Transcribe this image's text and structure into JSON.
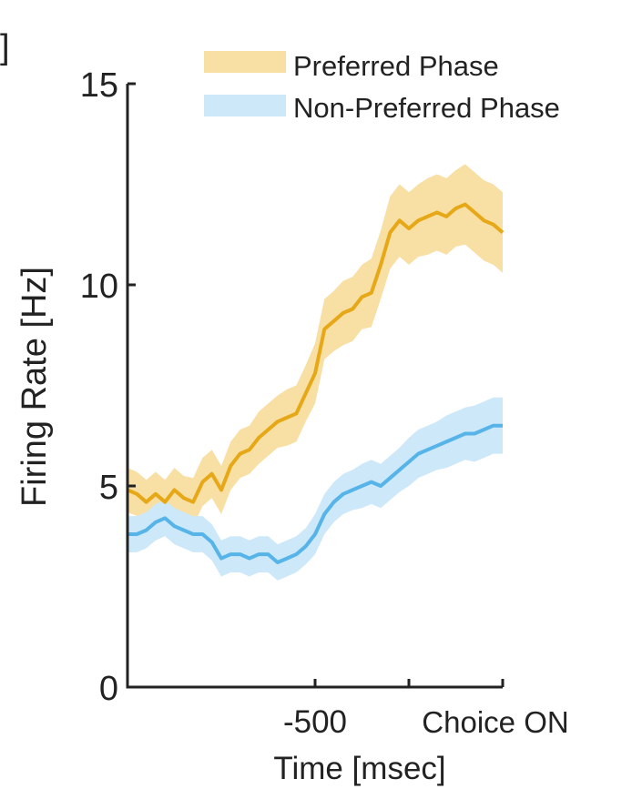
{
  "chart_data": {
    "type": "line",
    "title": "",
    "panel_label": "]",
    "xlabel": "Time [msec]",
    "ylabel": "Firing Rate [Hz]",
    "xlim": [
      -1000,
      0
    ],
    "ylim": [
      0,
      15
    ],
    "yticks": [
      0,
      5,
      10,
      15
    ],
    "ytick_labels": [
      "0",
      "5",
      "10",
      "15"
    ],
    "xticks": [
      -500,
      -250,
      0
    ],
    "xtick_labels": [
      "-500",
      "",
      "Choice ON"
    ],
    "grid": false,
    "legend": "top-right",
    "x": [
      -1000,
      -975,
      -950,
      -925,
      -900,
      -875,
      -850,
      -825,
      -800,
      -775,
      -750,
      -725,
      -700,
      -675,
      -650,
      -625,
      -600,
      -575,
      -550,
      -525,
      -500,
      -475,
      -450,
      -425,
      -400,
      -375,
      -350,
      -325,
      -300,
      -275,
      -250,
      -225,
      -200,
      -175,
      -150,
      -125,
      -100,
      -75,
      -50,
      -25,
      0
    ],
    "series": [
      {
        "name": "Preferred Phase",
        "color": "#e6a817",
        "band_color": "#f8dfa4",
        "values": [
          4.9,
          4.8,
          4.6,
          4.8,
          4.6,
          4.9,
          4.7,
          4.6,
          5.1,
          5.3,
          4.9,
          5.5,
          5.8,
          5.9,
          6.2,
          6.4,
          6.6,
          6.7,
          6.8,
          7.3,
          7.8,
          8.9,
          9.1,
          9.3,
          9.4,
          9.7,
          9.8,
          10.5,
          11.3,
          11.6,
          11.4,
          11.6,
          11.7,
          11.8,
          11.7,
          11.9,
          12.0,
          11.8,
          11.6,
          11.5,
          11.3
        ],
        "err": [
          0.55,
          0.55,
          0.55,
          0.55,
          0.55,
          0.55,
          0.55,
          0.6,
          0.6,
          0.6,
          0.6,
          0.6,
          0.6,
          0.6,
          0.65,
          0.65,
          0.65,
          0.7,
          0.7,
          0.7,
          0.75,
          0.75,
          0.75,
          0.8,
          0.8,
          0.8,
          0.85,
          0.85,
          0.9,
          0.9,
          0.9,
          0.9,
          0.95,
          0.95,
          0.95,
          0.95,
          1.0,
          1.0,
          1.0,
          1.0,
          1.0
        ]
      },
      {
        "name": "Non-Preferred Phase",
        "color": "#56b4e9",
        "band_color": "#cde8f8",
        "values": [
          3.8,
          3.8,
          3.9,
          4.1,
          4.2,
          4.0,
          3.9,
          3.8,
          3.8,
          3.6,
          3.2,
          3.3,
          3.3,
          3.2,
          3.3,
          3.3,
          3.1,
          3.2,
          3.3,
          3.5,
          3.8,
          4.3,
          4.6,
          4.8,
          4.9,
          5.0,
          5.1,
          5.0,
          5.2,
          5.4,
          5.6,
          5.8,
          5.9,
          6.0,
          6.1,
          6.2,
          6.3,
          6.3,
          6.4,
          6.5,
          6.5
        ],
        "err": [
          0.45,
          0.45,
          0.45,
          0.45,
          0.45,
          0.45,
          0.45,
          0.45,
          0.45,
          0.45,
          0.45,
          0.45,
          0.45,
          0.45,
          0.45,
          0.45,
          0.45,
          0.45,
          0.45,
          0.45,
          0.5,
          0.5,
          0.5,
          0.5,
          0.5,
          0.55,
          0.55,
          0.55,
          0.55,
          0.55,
          0.6,
          0.6,
          0.6,
          0.6,
          0.65,
          0.65,
          0.65,
          0.7,
          0.7,
          0.7,
          0.7
        ]
      }
    ]
  }
}
